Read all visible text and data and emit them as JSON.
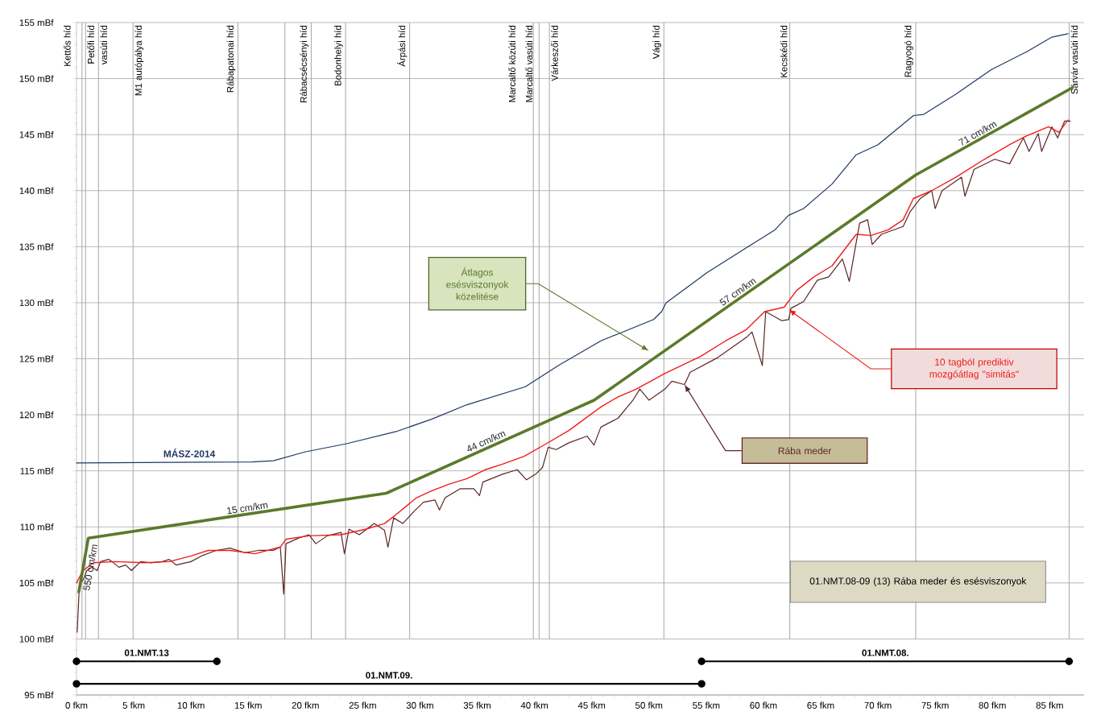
{
  "chart_data": {
    "type": "line",
    "xlim": [
      0,
      88
    ],
    "ylim": [
      95,
      155
    ],
    "xticks": [
      {
        "value": 0,
        "label": "0 fkm"
      },
      {
        "value": 5,
        "label": "5 fkm"
      },
      {
        "value": 10,
        "label": "10 fkm"
      },
      {
        "value": 15,
        "label": "15 fkm"
      },
      {
        "value": 20,
        "label": "20 fkm"
      },
      {
        "value": 25,
        "label": "25 fkm"
      },
      {
        "value": 30,
        "label": "30 fkm"
      },
      {
        "value": 35,
        "label": "35 fkm"
      },
      {
        "value": 40,
        "label": "40 fkm"
      },
      {
        "value": 45,
        "label": "45 fkm"
      },
      {
        "value": 50,
        "label": "50 fkm"
      },
      {
        "value": 55,
        "label": "55 fkm"
      },
      {
        "value": 60,
        "label": "60 fkm"
      },
      {
        "value": 65,
        "label": "65 fkm"
      },
      {
        "value": 70,
        "label": "70 fkm"
      },
      {
        "value": 75,
        "label": "75 fkm"
      },
      {
        "value": 80,
        "label": "80 fkm"
      },
      {
        "value": 85,
        "label": "85 fkm"
      }
    ],
    "yticks": [
      {
        "value": 95,
        "label": "95 mBf"
      },
      {
        "value": 100,
        "label": "100 mBf"
      },
      {
        "value": 105,
        "label": "105 mBf"
      },
      {
        "value": 110,
        "label": "110 mBf"
      },
      {
        "value": 115,
        "label": "115 mBf"
      },
      {
        "value": 120,
        "label": "120 mBf"
      },
      {
        "value": 125,
        "label": "125 mBf"
      },
      {
        "value": 130,
        "label": "130 mBf"
      },
      {
        "value": 135,
        "label": "135 mBf"
      },
      {
        "value": 140,
        "label": "140 mBf"
      },
      {
        "value": 145,
        "label": "145 mBf"
      },
      {
        "value": 150,
        "label": "150 mBf"
      },
      {
        "value": 155,
        "label": "155 mBf"
      }
    ],
    "grid": "y",
    "series": [
      {
        "name": "MÁSZ-2014",
        "color": "#1f3864",
        "x": [
          0,
          15.3,
          17.2,
          20.0,
          23.5,
          27.9,
          31.0,
          34.1,
          39.2,
          42.1,
          45.8,
          50.4,
          51.1,
          51.5,
          55.1,
          58.5,
          61.0,
          62.2,
          63.5,
          66.0,
          68.1,
          70.0,
          73.1,
          74.0,
          76.8,
          79.9,
          83.0,
          85.2,
          86.6
        ],
        "values": [
          115.7,
          115.8,
          115.9,
          116.7,
          117.4,
          118.5,
          119.6,
          120.9,
          122.5,
          124.4,
          126.6,
          128.5,
          129.2,
          130.0,
          132.7,
          134.9,
          136.5,
          137.8,
          138.4,
          140.6,
          143.2,
          144.1,
          146.7,
          146.8,
          148.6,
          150.8,
          152.4,
          153.7,
          154.0
        ]
      },
      {
        "name": "Rába meder",
        "color": "#5c2626",
        "x": [
          0.06,
          0.25,
          0.6,
          0.9,
          1.35,
          1.8,
          2.1,
          2.8,
          3.1,
          3.7,
          4.3,
          4.8,
          5.6,
          6.5,
          7.5,
          8.1,
          8.7,
          10.0,
          10.9,
          12.2,
          13.4,
          14.7,
          15.9,
          17.2,
          17.8,
          18.1,
          18.3,
          19.4,
          20.3,
          20.9,
          21.9,
          23.1,
          23.4,
          23.8,
          24.7,
          26.0,
          26.9,
          27.2,
          27.7,
          28.5,
          29.4,
          30.3,
          31.3,
          31.7,
          32.2,
          33.5,
          34.7,
          35.2,
          35.5,
          37.2,
          38.5,
          39.3,
          40.1,
          40.7,
          41.2,
          41.9,
          43.0,
          44.6,
          45.2,
          45.8,
          47.3,
          48.6,
          49.2,
          50.0,
          51.4,
          52.0,
          53.1,
          53.6,
          56.0,
          58.5,
          59.0,
          59.9,
          60.2,
          61.6,
          62.2,
          62.4,
          63.5,
          64.7,
          65.7,
          66.9,
          67.5,
          68.4,
          69.1,
          69.5,
          70.3,
          72.2,
          72.8,
          73.7,
          74.7,
          75.0,
          75.6,
          77.3,
          77.6,
          78.4,
          80.2,
          81.5,
          82.7,
          83.2,
          84.0,
          84.3,
          85.2,
          85.7,
          86.3,
          86.8
        ],
        "values": [
          100.6,
          104.8,
          105.3,
          106.1,
          106.4,
          106.1,
          106.9,
          107.1,
          106.9,
          106.4,
          106.6,
          106.1,
          106.9,
          106.8,
          106.9,
          107.1,
          106.6,
          106.9,
          107.4,
          107.9,
          108.1,
          107.7,
          107.9,
          107.9,
          108.2,
          104.0,
          108.5,
          109.0,
          109.3,
          108.5,
          109.2,
          109.5,
          107.6,
          109.8,
          109.3,
          110.3,
          109.7,
          108.2,
          110.8,
          110.3,
          111.3,
          112.2,
          112.4,
          111.5,
          112.6,
          113.4,
          113.4,
          112.8,
          114.0,
          114.7,
          115.1,
          114.2,
          114.7,
          115.3,
          117.1,
          116.9,
          117.5,
          118.1,
          117.3,
          118.9,
          119.7,
          121.3,
          122.3,
          121.3,
          122.3,
          123.0,
          122.7,
          123.8,
          125.1,
          126.9,
          127.4,
          124.4,
          129.2,
          128.4,
          128.5,
          129.5,
          130.1,
          132.0,
          132.3,
          133.9,
          131.9,
          137.1,
          137.4,
          135.2,
          136.1,
          136.8,
          138.1,
          139.3,
          140.0,
          138.4,
          140.0,
          141.2,
          139.5,
          141.9,
          142.8,
          142.4,
          144.7,
          143.5,
          145.1,
          143.5,
          145.7,
          144.7,
          146.2,
          146.2
        ]
      },
      {
        "name": "10 tagból  prediktiv mozgóátlag  \"simitás\"",
        "color": "#ee1c1c",
        "x": [
          0,
          0.56,
          1.5,
          3.4,
          5.9,
          8.1,
          10.0,
          11.5,
          13.4,
          15.6,
          17.8,
          18.3,
          20.3,
          23.1,
          25.3,
          26.9,
          27.8,
          29.7,
          31.0,
          32.5,
          34.1,
          35.7,
          37.2,
          39.1,
          41.0,
          43.0,
          45.8,
          47.3,
          48.9,
          51.4,
          54.5,
          56.7,
          58.5,
          60.1,
          61.8,
          62.9,
          64.4,
          66.0,
          68.1,
          69.4,
          70.9,
          72.2,
          73.1,
          74.7,
          76.8,
          79.3,
          81.5,
          83.0,
          84.9,
          85.8,
          86.6
        ],
        "values": [
          105.0,
          106.1,
          106.8,
          106.9,
          106.8,
          106.9,
          107.4,
          107.9,
          107.9,
          107.6,
          108.2,
          108.9,
          109.2,
          109.3,
          109.8,
          110.3,
          111.0,
          112.6,
          113.2,
          113.8,
          114.3,
          115.1,
          115.6,
          116.3,
          117.4,
          118.6,
          120.7,
          121.6,
          122.3,
          123.7,
          125.2,
          126.6,
          127.6,
          129.2,
          129.6,
          131.1,
          132.3,
          133.3,
          136.1,
          136.0,
          136.5,
          137.4,
          139.3,
          140.0,
          141.2,
          142.8,
          144.1,
          144.9,
          145.7,
          145.2,
          146.3
        ]
      },
      {
        "name": "Átlagos esésviszonyok közelitése",
        "color": "#5b7a2b",
        "x": [
          0.2,
          1.03,
          27.05,
          45.2,
          73.3,
          87.0
        ],
        "values": [
          104.2,
          109.0,
          113.0,
          121.3,
          141.4,
          149.2
        ]
      },
      {
        "name": "01.NMT.13",
        "color": "#000000",
        "marker": "circle",
        "x": [
          0,
          12.26
        ],
        "values": [
          98,
          98
        ]
      },
      {
        "name": "01.NMT.09.",
        "color": "#000000",
        "marker": "circle",
        "x": [
          0,
          54.6
        ],
        "values": [
          96,
          96
        ]
      },
      {
        "name": "01.NMT.08.",
        "color": "#000000",
        "marker": "circle",
        "x": [
          54.6,
          86.7
        ],
        "values": [
          98,
          98
        ]
      }
    ],
    "ref_lines": [
      {
        "axis": "x",
        "value": 0.48,
        "label": "Kettős híd",
        "color": "#a6a6a6"
      },
      {
        "axis": "x",
        "value": 0.79,
        "label": "Petőfi híd",
        "color": "#a6a6a6"
      },
      {
        "axis": "x",
        "value": 1.92,
        "label": "vasúti híd",
        "color": "#a6a6a6"
      },
      {
        "axis": "x",
        "value": 4.94,
        "label": "M1 autópálya híd",
        "color": "#a6a6a6"
      },
      {
        "axis": "x",
        "value": 14.1,
        "label": "Rábapatonai híd",
        "color": "#a6a6a6"
      },
      {
        "axis": "x",
        "value": 18.2,
        "color": "#a6a6a6"
      },
      {
        "axis": "x",
        "value": 20.5,
        "label": "Rábacsécsényi híd",
        "color": "#a6a6a6"
      },
      {
        "axis": "x",
        "value": 23.5,
        "label": "Bodonhelyi híd",
        "color": "#a6a6a6"
      },
      {
        "axis": "x",
        "value": 29.1,
        "label": "Árpási híd",
        "color": "#a6a6a6"
      },
      {
        "axis": "x",
        "value": 39.9,
        "label": "Marcaltő közúti híd",
        "color": "#a6a6a6"
      },
      {
        "axis": "x",
        "value": 40.4,
        "label": "Marcaltő vasúti híd",
        "color": "#a6a6a6"
      },
      {
        "axis": "x",
        "value": 41.3,
        "label": "Várkeszői híd",
        "color": "#a6a6a6"
      },
      {
        "axis": "x",
        "value": 51.3,
        "label": "Vági híd",
        "color": "#a6a6a6"
      },
      {
        "axis": "x",
        "value": 62.3,
        "label": "Kecskédi híd",
        "color": "#a6a6a6"
      },
      {
        "axis": "x",
        "value": 73.3,
        "label": "Ragyogó híd",
        "color": "#a6a6a6"
      },
      {
        "axis": "x",
        "value": 86.7,
        "label": "Sárvár vasúti híd",
        "color": "#a6a6a6"
      }
    ],
    "annotations": [
      {
        "text": "550 cm/km",
        "x": 0.6,
        "y": 106.5
      },
      {
        "text": "15 cm/km",
        "x": 15.0,
        "y": 111.1
      },
      {
        "text": "44 cm/km",
        "x": 36.0,
        "y": 117.1
      },
      {
        "text": "57 cm/km",
        "x": 58.1,
        "y": 130.5
      },
      {
        "text": "71 cm/km",
        "x": 79.0,
        "y": 144.6
      },
      "01.NMT.08-09 (13)  Rába meder és esésviszonyok"
    ]
  }
}
